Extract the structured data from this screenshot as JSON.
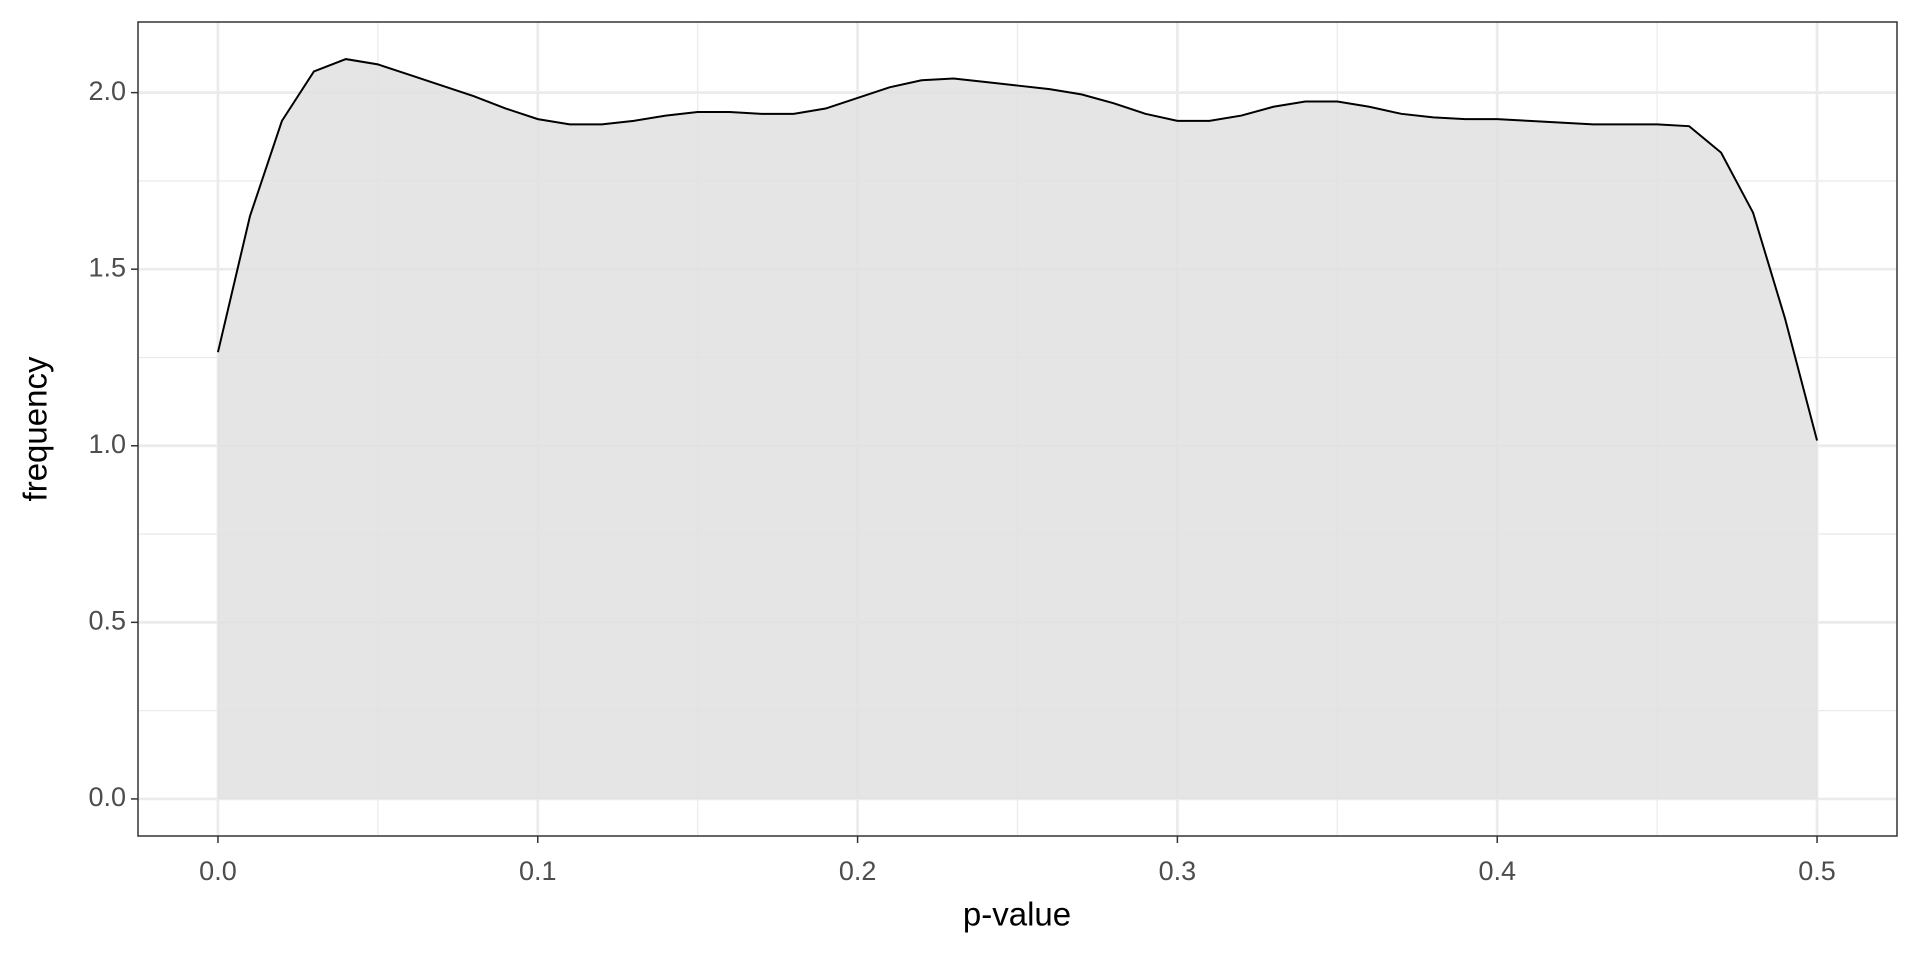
{
  "chart_data": {
    "type": "area",
    "x_label": "p-value",
    "y_label": "frequency",
    "x": [
      0,
      0.01,
      0.02,
      0.03,
      0.04,
      0.05,
      0.06,
      0.07,
      0.08,
      0.09,
      0.1,
      0.11,
      0.12,
      0.13,
      0.14,
      0.15,
      0.16,
      0.17,
      0.18,
      0.19,
      0.2,
      0.21,
      0.22,
      0.23,
      0.24,
      0.25,
      0.26,
      0.27,
      0.28,
      0.29,
      0.3,
      0.31,
      0.32,
      0.33,
      0.34,
      0.35,
      0.36,
      0.37,
      0.38,
      0.39,
      0.4,
      0.41,
      0.42,
      0.43,
      0.44,
      0.45,
      0.46,
      0.47,
      0.48,
      0.49,
      0.5
    ],
    "values": [
      1.265,
      1.65,
      1.92,
      2.06,
      2.095,
      2.08,
      2.05,
      2.02,
      1.99,
      1.955,
      1.925,
      1.91,
      1.91,
      1.92,
      1.935,
      1.945,
      1.945,
      1.94,
      1.94,
      1.955,
      1.985,
      2.015,
      2.035,
      2.04,
      2.03,
      2.02,
      2.01,
      1.995,
      1.97,
      1.94,
      1.92,
      1.92,
      1.935,
      1.96,
      1.975,
      1.975,
      1.96,
      1.94,
      1.93,
      1.925,
      1.925,
      1.92,
      1.915,
      1.91,
      1.91,
      1.91,
      1.905,
      1.83,
      1.66,
      1.36,
      1.015
    ],
    "color": "#e0e0e0",
    "line_color": "#000000",
    "xlim": [
      -0.025,
      0.525
    ],
    "ylim": [
      -0.105,
      2.2
    ],
    "xticks": [
      {
        "value": 0,
        "label": "0.0"
      },
      0.1,
      0.2,
      0.3,
      0.4,
      0.5
    ],
    "yticks": [
      {
        "value": 0,
        "label": "0.0"
      },
      0.5,
      {
        "value": 1,
        "label": "1.0"
      },
      1.5,
      {
        "value": 2,
        "label": "2.0"
      }
    ],
    "x_minor_ticks": [
      0.05,
      0.15,
      0.25,
      0.35,
      0.45
    ],
    "y_minor_ticks": [
      0.25,
      0.75,
      1.25,
      1.75
    ],
    "grid": true
  }
}
